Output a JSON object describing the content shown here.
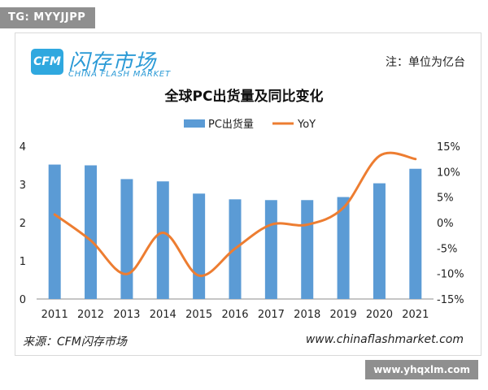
{
  "watermark_top": "TG: MYYJJPP",
  "watermark_bottom": "www.yhqxlm.com",
  "logo": {
    "mark": "CFM",
    "name_cn": "闪存市场",
    "name_en": "CHINA FLASH MARKET"
  },
  "unit_note": "注：单位为亿台",
  "footer": {
    "source": "来源：CFM闪存市场",
    "url": "www.chinaflashmarket.com"
  },
  "colors": {
    "bar": "#5b9bd5",
    "line": "#ed7d31"
  },
  "chart_data": {
    "type": "bar+line",
    "title": "全球PC出货量及同比变化",
    "legend_position": "top",
    "categories": [
      "2011",
      "2012",
      "2013",
      "2014",
      "2015",
      "2016",
      "2017",
      "2018",
      "2019",
      "2020",
      "2021"
    ],
    "series": [
      {
        "name": "PC出货量",
        "type": "bar",
        "axis": "left",
        "values": [
          3.52,
          3.5,
          3.14,
          3.08,
          2.76,
          2.61,
          2.59,
          2.59,
          2.67,
          3.03,
          3.41
        ]
      },
      {
        "name": "YoY",
        "type": "line",
        "axis": "right",
        "values": [
          1.6,
          -3.5,
          -10.1,
          -2.0,
          -10.4,
          -5.1,
          -0.4,
          -0.4,
          2.9,
          13.1,
          12.5
        ]
      }
    ],
    "y_left": {
      "min": 0,
      "max": 4,
      "ticks": [
        "0",
        "1",
        "2",
        "3",
        "4"
      ]
    },
    "y_right": {
      "min": -15,
      "max": 15,
      "ticks": [
        "-15%",
        "-10%",
        "-5%",
        "0%",
        "5%",
        "10%",
        "15%"
      ]
    },
    "grid": false
  }
}
